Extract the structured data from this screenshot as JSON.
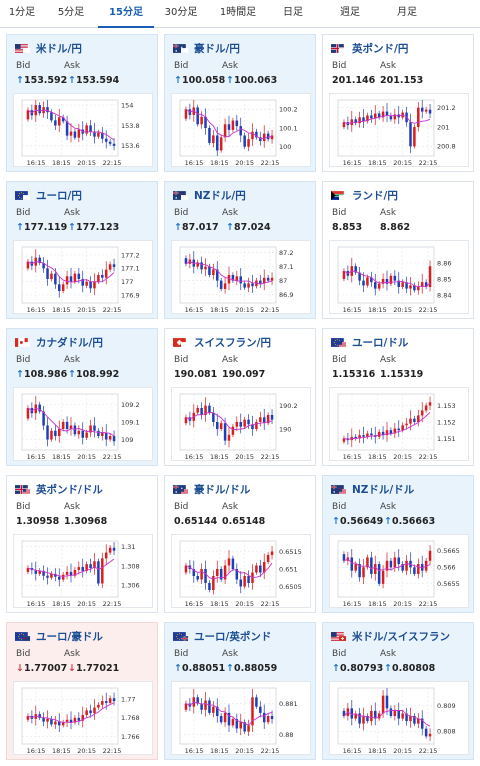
{
  "tabs": [
    {
      "label": "1分足",
      "active": false
    },
    {
      "label": "5分足",
      "active": false
    },
    {
      "label": "15分足",
      "active": true
    },
    {
      "label": "30分足",
      "active": false
    },
    {
      "label": "1時間足",
      "active": false
    },
    {
      "label": "日足",
      "active": false
    },
    {
      "label": "週足",
      "active": false
    },
    {
      "label": "月足",
      "active": false
    }
  ],
  "labels": {
    "bid": "Bid",
    "ask": "Ask"
  },
  "colors": {
    "up": "#d81e1e",
    "down": "#1f3fb8",
    "ma": "#cc33cc",
    "link": "#1b4e93",
    "arrow_up": "#1d72c9",
    "arrow_down": "#d23b3b"
  },
  "cards": [
    {
      "name": "米ドル/円",
      "flag": "us-flag",
      "bid": "153.592",
      "ask": "153.594",
      "direction": "up",
      "highlight": "blue",
      "chart_data": {
        "type": "candlestick",
        "x_ticks": [
          "16:15",
          "18:15",
          "20:15",
          "22:15"
        ],
        "y_ticks": [
          "154",
          "153.8",
          "153.6"
        ],
        "ylim": [
          153.5,
          154.05
        ],
        "path": [
          153.86,
          153.95,
          153.9,
          154.0,
          153.92,
          153.98,
          153.93,
          153.85,
          153.8,
          153.88,
          153.84,
          153.7,
          153.74,
          153.68,
          153.76,
          153.72,
          153.8,
          153.74,
          153.69,
          153.73,
          153.67,
          153.64,
          153.62,
          153.6
        ]
      }
    },
    {
      "name": "豪ドル/円",
      "flag": "au-flag",
      "bid": "100.058",
      "ask": "100.063",
      "direction": "up",
      "highlight": "blue",
      "chart_data": {
        "type": "candlestick",
        "x_ticks": [
          "16:15",
          "18:15",
          "20:15",
          "22:15"
        ],
        "y_ticks": [
          "100.2",
          "100.1",
          "100"
        ],
        "ylim": [
          99.95,
          100.25
        ],
        "path": [
          100.15,
          100.2,
          100.17,
          100.21,
          100.12,
          100.16,
          100.1,
          100.02,
          100.06,
          99.98,
          100.05,
          100.12,
          100.09,
          100.14,
          100.11,
          100.06,
          100.0,
          100.04,
          100.08,
          100.05,
          100.03,
          100.07,
          100.04,
          100.06
        ]
      }
    },
    {
      "name": "英ポンド/円",
      "flag": "gb-flag",
      "bid": "201.146",
      "ask": "201.153",
      "direction": "none",
      "highlight": "none",
      "chart_data": {
        "type": "candlestick",
        "x_ticks": [
          "16:15",
          "18:15",
          "20:15",
          "22:15"
        ],
        "y_ticks": [
          "201.2",
          "201",
          "200.8"
        ],
        "ylim": [
          200.7,
          201.28
        ],
        "path": [
          201.0,
          201.05,
          201.02,
          201.08,
          201.04,
          201.1,
          201.06,
          201.12,
          201.09,
          201.14,
          201.1,
          201.16,
          201.12,
          201.08,
          201.13,
          201.1,
          201.15,
          201.05,
          200.8,
          201.0,
          201.2,
          201.16,
          201.18,
          201.14
        ]
      }
    },
    {
      "name": "ユーロ/円",
      "flag": "eu-flag",
      "bid": "177.119",
      "ask": "177.123",
      "direction": "up",
      "highlight": "blue",
      "chart_data": {
        "type": "candlestick",
        "x_ticks": [
          "16:15",
          "18:15",
          "20:15",
          "22:15"
        ],
        "y_ticks": [
          "177.2",
          "177.1",
          "177",
          "176.9"
        ],
        "ylim": [
          176.84,
          177.26
        ],
        "path": [
          177.1,
          177.15,
          177.12,
          177.18,
          177.14,
          177.1,
          177.02,
          177.06,
          176.98,
          176.93,
          176.98,
          177.04,
          177.0,
          177.06,
          177.02,
          176.97,
          177.0,
          176.95,
          177.0,
          177.05,
          177.03,
          177.09,
          177.13,
          177.11
        ]
      }
    },
    {
      "name": "NZドル/円",
      "flag": "nz-flag",
      "bid": "87.017",
      "ask": "87.024",
      "direction": "up",
      "highlight": "blue",
      "chart_data": {
        "type": "candlestick",
        "x_ticks": [
          "16:15",
          "18:15",
          "20:15",
          "22:15"
        ],
        "y_ticks": [
          "87.2",
          "87.1",
          "87",
          "86.9"
        ],
        "ylim": [
          86.84,
          87.24
        ],
        "path": [
          87.16,
          87.12,
          87.15,
          87.1,
          87.13,
          87.08,
          87.1,
          87.04,
          87.08,
          87.0,
          86.94,
          86.98,
          87.04,
          87.0,
          87.03,
          86.98,
          86.95,
          86.98,
          86.96,
          87.0,
          86.98,
          87.02,
          87.0,
          87.02
        ]
      }
    },
    {
      "name": "ランド/円",
      "flag": "za-flag",
      "bid": "8.853",
      "ask": "8.862",
      "direction": "none",
      "highlight": "none",
      "chart_data": {
        "type": "candlestick",
        "x_ticks": [
          "16:15",
          "18:15",
          "20:15",
          "22:15"
        ],
        "y_ticks": [
          "8.86",
          "8.85",
          "8.84"
        ],
        "ylim": [
          8.835,
          8.87
        ],
        "path": [
          8.85,
          8.855,
          8.852,
          8.858,
          8.854,
          8.849,
          8.846,
          8.851,
          8.848,
          8.844,
          8.847,
          8.85,
          8.847,
          8.852,
          8.849,
          8.845,
          8.848,
          8.844,
          8.846,
          8.843,
          8.845,
          8.848,
          8.845,
          8.858
        ]
      }
    },
    {
      "name": "カナダドル/円",
      "flag": "ca-flag",
      "bid": "108.986",
      "ask": "108.992",
      "direction": "up",
      "highlight": "blue",
      "chart_data": {
        "type": "candlestick",
        "x_ticks": [
          "16:15",
          "18:15",
          "20:15",
          "22:15"
        ],
        "y_ticks": [
          "109.2",
          "109.1",
          "109"
        ],
        "ylim": [
          108.94,
          109.26
        ],
        "path": [
          109.12,
          109.18,
          109.15,
          109.2,
          109.16,
          109.08,
          109.0,
          109.05,
          109.02,
          109.06,
          109.1,
          109.06,
          109.08,
          109.03,
          109.05,
          109.01,
          109.04,
          109.08,
          109.05,
          109.02,
          109.04,
          109.0,
          109.02,
          108.99
        ]
      }
    },
    {
      "name": "スイスフラン/円",
      "flag": "ch-flag",
      "bid": "190.081",
      "ask": "190.097",
      "direction": "none",
      "highlight": "none",
      "chart_data": {
        "type": "candlestick",
        "x_ticks": [
          "16:15",
          "18:15",
          "20:15",
          "22:15"
        ],
        "y_ticks": [
          "190.2",
          "190"
        ],
        "ylim": [
          189.82,
          190.3
        ],
        "path": [
          190.05,
          190.1,
          190.07,
          190.14,
          190.18,
          190.12,
          190.2,
          190.14,
          190.06,
          190.0,
          190.05,
          189.9,
          189.95,
          190.02,
          190.06,
          190.02,
          190.08,
          190.04,
          190.0,
          190.06,
          190.1,
          190.05,
          190.12,
          190.08
        ]
      }
    },
    {
      "name": "ユーロ/ドル",
      "flag": "eu-us-flag",
      "bid": "1.15316",
      "ask": "1.15319",
      "direction": "none",
      "highlight": "none",
      "chart_data": {
        "type": "candlestick",
        "x_ticks": [
          "16:15",
          "18:15",
          "20:15",
          "22:15"
        ],
        "y_ticks": [
          "1.153",
          "1.152",
          "1.151"
        ],
        "ylim": [
          1.1503,
          1.1537
        ],
        "path": [
          1.1508,
          1.151,
          1.1509,
          1.1511,
          1.151,
          1.1512,
          1.1511,
          1.1513,
          1.1512,
          1.1511,
          1.1514,
          1.1512,
          1.1515,
          1.1513,
          1.1516,
          1.1515,
          1.1518,
          1.1519,
          1.1522,
          1.152,
          1.1524,
          1.1527,
          1.153,
          1.1532
        ]
      }
    },
    {
      "name": "英ポンド/ドル",
      "flag": "gb-us-flag",
      "bid": "1.30958",
      "ask": "1.30968",
      "direction": "none",
      "highlight": "none",
      "chart_data": {
        "type": "candlestick",
        "x_ticks": [
          "16:15",
          "18:15",
          "20:15",
          "22:15"
        ],
        "y_ticks": [
          "1.31",
          "1.308",
          "1.306"
        ],
        "ylim": [
          1.3048,
          1.3106
        ],
        "path": [
          1.3074,
          1.3078,
          1.3076,
          1.3072,
          1.3075,
          1.307,
          1.3068,
          1.3072,
          1.3069,
          1.3066,
          1.3071,
          1.3074,
          1.307,
          1.3076,
          1.3079,
          1.3075,
          1.3082,
          1.3078,
          1.3085,
          1.3062,
          1.3088,
          1.3094,
          1.3099,
          1.3096
        ]
      }
    },
    {
      "name": "豪ドル/ドル",
      "flag": "au-us-flag",
      "bid": "0.65144",
      "ask": "0.65148",
      "direction": "none",
      "highlight": "none",
      "chart_data": {
        "type": "candlestick",
        "x_ticks": [
          "16:15",
          "18:15",
          "20:15",
          "22:15"
        ],
        "y_ticks": [
          "0.6515",
          "0.651",
          "0.6505"
        ],
        "ylim": [
          0.6502,
          0.6518
        ],
        "path": [
          0.6509,
          0.6511,
          0.651,
          0.6508,
          0.6507,
          0.651,
          0.6506,
          0.6504,
          0.6508,
          0.651,
          0.6507,
          0.6511,
          0.6513,
          0.651,
          0.6507,
          0.6505,
          0.6508,
          0.6506,
          0.6509,
          0.6511,
          0.6509,
          0.6512,
          0.6514,
          0.6515
        ]
      }
    },
    {
      "name": "NZドル/ドル",
      "flag": "nz-us-flag",
      "bid": "0.56649",
      "ask": "0.56663",
      "direction": "up",
      "highlight": "blue",
      "chart_data": {
        "type": "candlestick",
        "x_ticks": [
          "16:15",
          "18:15",
          "20:15",
          "22:15"
        ],
        "y_ticks": [
          "0.5665",
          "0.566",
          "0.5655"
        ],
        "ylim": [
          0.5651,
          0.5668
        ],
        "path": [
          0.5664,
          0.5662,
          0.5663,
          0.5659,
          0.5661,
          0.5657,
          0.566,
          0.5663,
          0.5658,
          0.5661,
          0.5655,
          0.5659,
          0.5662,
          0.566,
          0.5663,
          0.5661,
          0.5659,
          0.5662,
          0.566,
          0.5658,
          0.5661,
          0.5659,
          0.5662,
          0.5665
        ]
      }
    },
    {
      "name": "ユーロ/豪ドル",
      "flag": "eu-au-flag",
      "bid": "1.77007",
      "ask": "1.77021",
      "direction": "down",
      "highlight": "red",
      "chart_data": {
        "type": "candlestick",
        "x_ticks": [
          "16:15",
          "18:15",
          "20:15",
          "22:15"
        ],
        "y_ticks": [
          "1.77",
          "1.768",
          "1.766"
        ],
        "ylim": [
          1.7652,
          1.7712
        ],
        "path": [
          1.7678,
          1.7682,
          1.7679,
          1.7684,
          1.768,
          1.7676,
          1.7679,
          1.7673,
          1.7676,
          1.7672,
          1.7675,
          1.7678,
          1.7675,
          1.768,
          1.7677,
          1.7683,
          1.7688,
          1.7685,
          1.7691,
          1.7694,
          1.7698,
          1.7696,
          1.7701,
          1.7698
        ]
      }
    },
    {
      "name": "ユーロ/英ポンド",
      "flag": "eu-gb-flag",
      "bid": "0.88051",
      "ask": "0.88059",
      "direction": "up",
      "highlight": "blue",
      "chart_data": {
        "type": "candlestick",
        "x_ticks": [
          "16:15",
          "18:15",
          "20:15",
          "22:15"
        ],
        "y_ticks": [
          "0.881",
          "0.88"
        ],
        "ylim": [
          0.8797,
          0.8815
        ],
        "path": [
          0.8808,
          0.881,
          0.8809,
          0.8812,
          0.881,
          0.8808,
          0.8811,
          0.8807,
          0.8809,
          0.8806,
          0.8804,
          0.8807,
          0.8803,
          0.8805,
          0.8802,
          0.8804,
          0.8801,
          0.8803,
          0.8812,
          0.8809,
          0.8807,
          0.8804,
          0.8806,
          0.8805
        ]
      }
    },
    {
      "name": "米ドル/スイスフラン",
      "flag": "us-ch-flag",
      "bid": "0.80793",
      "ask": "0.80808",
      "direction": "up",
      "highlight": "blue",
      "chart_data": {
        "type": "candlestick",
        "x_ticks": [
          "16:15",
          "18:15",
          "20:15",
          "22:15"
        ],
        "y_ticks": [
          "0.809",
          "0.808"
        ],
        "ylim": [
          0.8075,
          0.8097
        ],
        "path": [
          0.8088,
          0.8086,
          0.8089,
          0.8085,
          0.8087,
          0.8083,
          0.8086,
          0.8084,
          0.8088,
          0.8085,
          0.8087,
          0.8094,
          0.8089,
          0.8086,
          0.8088,
          0.8085,
          0.8087,
          0.8084,
          0.8086,
          0.8083,
          0.8085,
          0.8081,
          0.8078,
          0.8079
        ]
      }
    }
  ]
}
